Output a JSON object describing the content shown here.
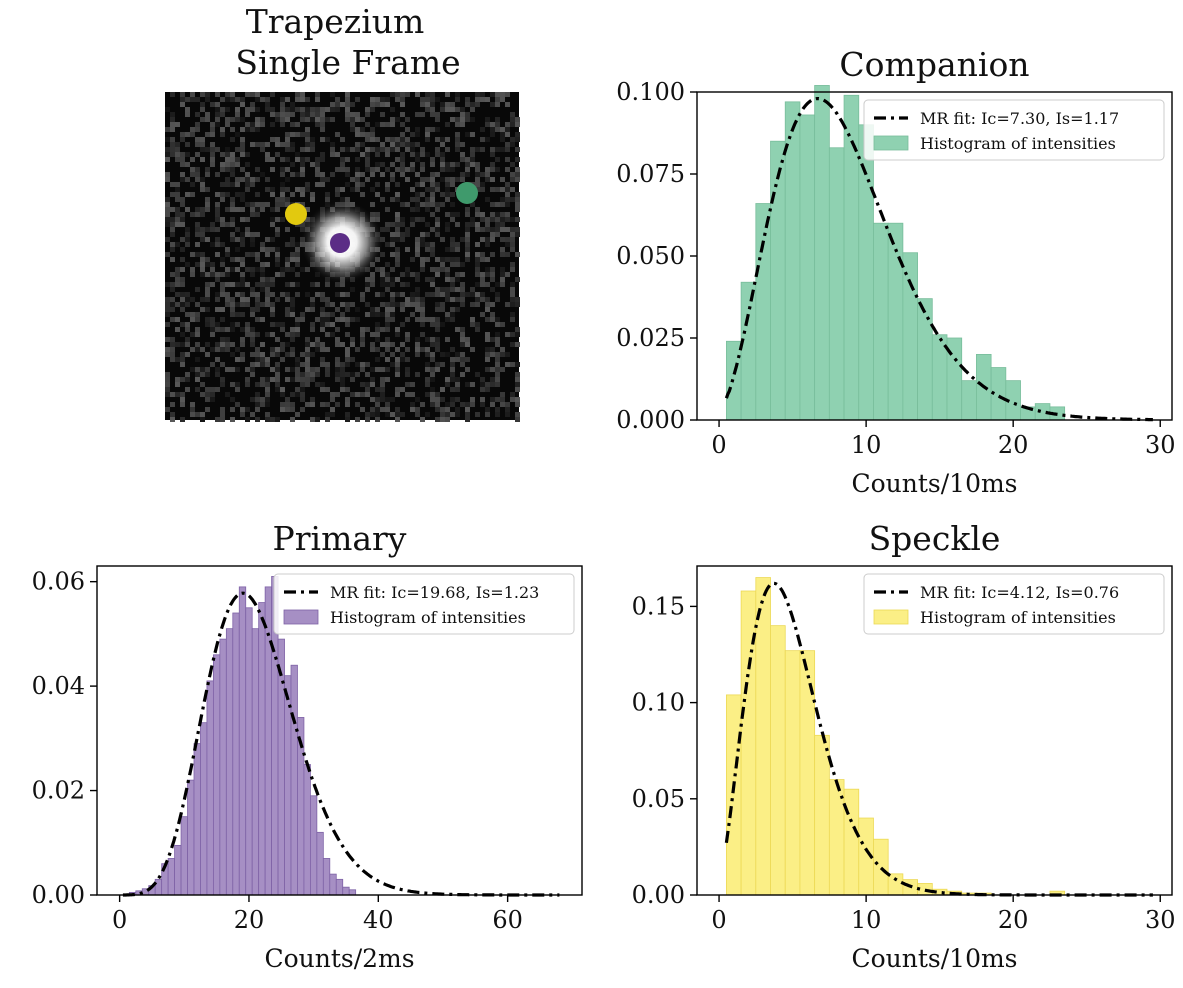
{
  "image_panel": {
    "title_line1": "Trapezium",
    "title_line2": "Single Frame",
    "markers": [
      {
        "name": "speckle",
        "color": "#e2c90f"
      },
      {
        "name": "primary",
        "color": "#5b2d86"
      },
      {
        "name": "companion",
        "color": "#3f9a6c"
      }
    ]
  },
  "chart_data": [
    {
      "type": "bar",
      "title": "Companion",
      "xlabel": "Counts/10ms",
      "ylabel": "",
      "color": "#8fd1b1",
      "edge_color": "#78bd9b",
      "xlim": [
        -1.5,
        30.8
      ],
      "ylim": [
        0,
        0.1
      ],
      "xticks": [
        "0",
        "10",
        "20",
        "30"
      ],
      "xtick_values": [
        0,
        10,
        20,
        30
      ],
      "yticks": [
        "0.000",
        "0.025",
        "0.050",
        "0.075",
        "0.100"
      ],
      "ytick_values": [
        0,
        0.025,
        0.05,
        0.075,
        0.1
      ],
      "bin_start": 0.5,
      "bin_width": 1.0,
      "values": [
        0.024,
        0.042,
        0.066,
        0.085,
        0.097,
        0.093,
        0.102,
        0.083,
        0.099,
        0.09,
        0.06,
        0.06,
        0.051,
        0.037,
        0.026,
        0.025,
        0.012,
        0.02,
        0.016,
        0.012,
        0.004,
        0.005,
        0.004
      ],
      "fit": {
        "label": "MR fit: Ic=7.30, Is=1.17",
        "Ic": 7.3,
        "Is": 1.17,
        "x_range": [
          0.5,
          29.5
        ]
      },
      "legend": [
        "MR fit: Ic=7.30, Is=1.17",
        "Histogram of intensities"
      ],
      "legend_position": "top-right"
    },
    {
      "type": "bar",
      "title": "Primary",
      "xlabel": "Counts/2ms",
      "ylabel": "",
      "color": "#a68fc4",
      "edge_color": "#7e62a6",
      "xlim": [
        -3.5,
        71.5
      ],
      "ylim": [
        0,
        0.063
      ],
      "xticks": [
        "0",
        "20",
        "40",
        "60"
      ],
      "xtick_values": [
        0,
        20,
        40,
        60
      ],
      "yticks": [
        "0.00",
        "0.02",
        "0.04",
        "0.06"
      ],
      "ytick_values": [
        0,
        0.02,
        0.04,
        0.06
      ],
      "bin_start": 0.5,
      "bin_width": 1.0,
      "values": [
        0.0,
        0.0005,
        0.0008,
        0.0012,
        0.0018,
        0.003,
        0.006,
        0.007,
        0.0095,
        0.015,
        0.022,
        0.029,
        0.033,
        0.041,
        0.046,
        0.049,
        0.051,
        0.054,
        0.059,
        0.055,
        0.051,
        0.056,
        0.059,
        0.061,
        0.049,
        0.042,
        0.044,
        0.034,
        0.025,
        0.019,
        0.012,
        0.007,
        0.004,
        0.003,
        0.0015,
        0.001
      ],
      "fit": {
        "label": "MR fit: Ic=19.68, Is=1.23",
        "Ic": 19.68,
        "Is": 1.23,
        "x_range": [
          0.5,
          68
        ]
      },
      "legend": [
        "MR fit: Ic=19.68, Is=1.23",
        "Histogram of intensities"
      ],
      "legend_position": "top-right"
    },
    {
      "type": "bar",
      "title": "Speckle",
      "xlabel": "Counts/10ms",
      "ylabel": "",
      "color": "#fbef86",
      "edge_color": "#ecd955",
      "xlim": [
        -1.5,
        30.8
      ],
      "ylim": [
        0,
        0.171
      ],
      "xticks": [
        "0",
        "10",
        "20",
        "30"
      ],
      "xtick_values": [
        0,
        10,
        20,
        30
      ],
      "yticks": [
        "0.00",
        "0.05",
        "0.10",
        "0.15"
      ],
      "ytick_values": [
        0,
        0.05,
        0.1,
        0.15
      ],
      "bin_start": 0.5,
      "bin_width": 1.0,
      "values": [
        0.104,
        0.158,
        0.165,
        0.14,
        0.127,
        0.127,
        0.083,
        0.06,
        0.055,
        0.04,
        0.029,
        0.011,
        0.008,
        0.006,
        0.003,
        0.002,
        0.001,
        0.001,
        0.0,
        0.0,
        0.0,
        0.0,
        0.002
      ],
      "fit": {
        "label": "MR fit: Ic=4.12, Is=0.76",
        "Ic": 4.12,
        "Is": 0.76,
        "x_range": [
          0.5,
          29.5
        ]
      },
      "legend": [
        "MR fit: Ic=4.12, Is=0.76",
        "Histogram of intensities"
      ],
      "legend_position": "top-right"
    }
  ]
}
